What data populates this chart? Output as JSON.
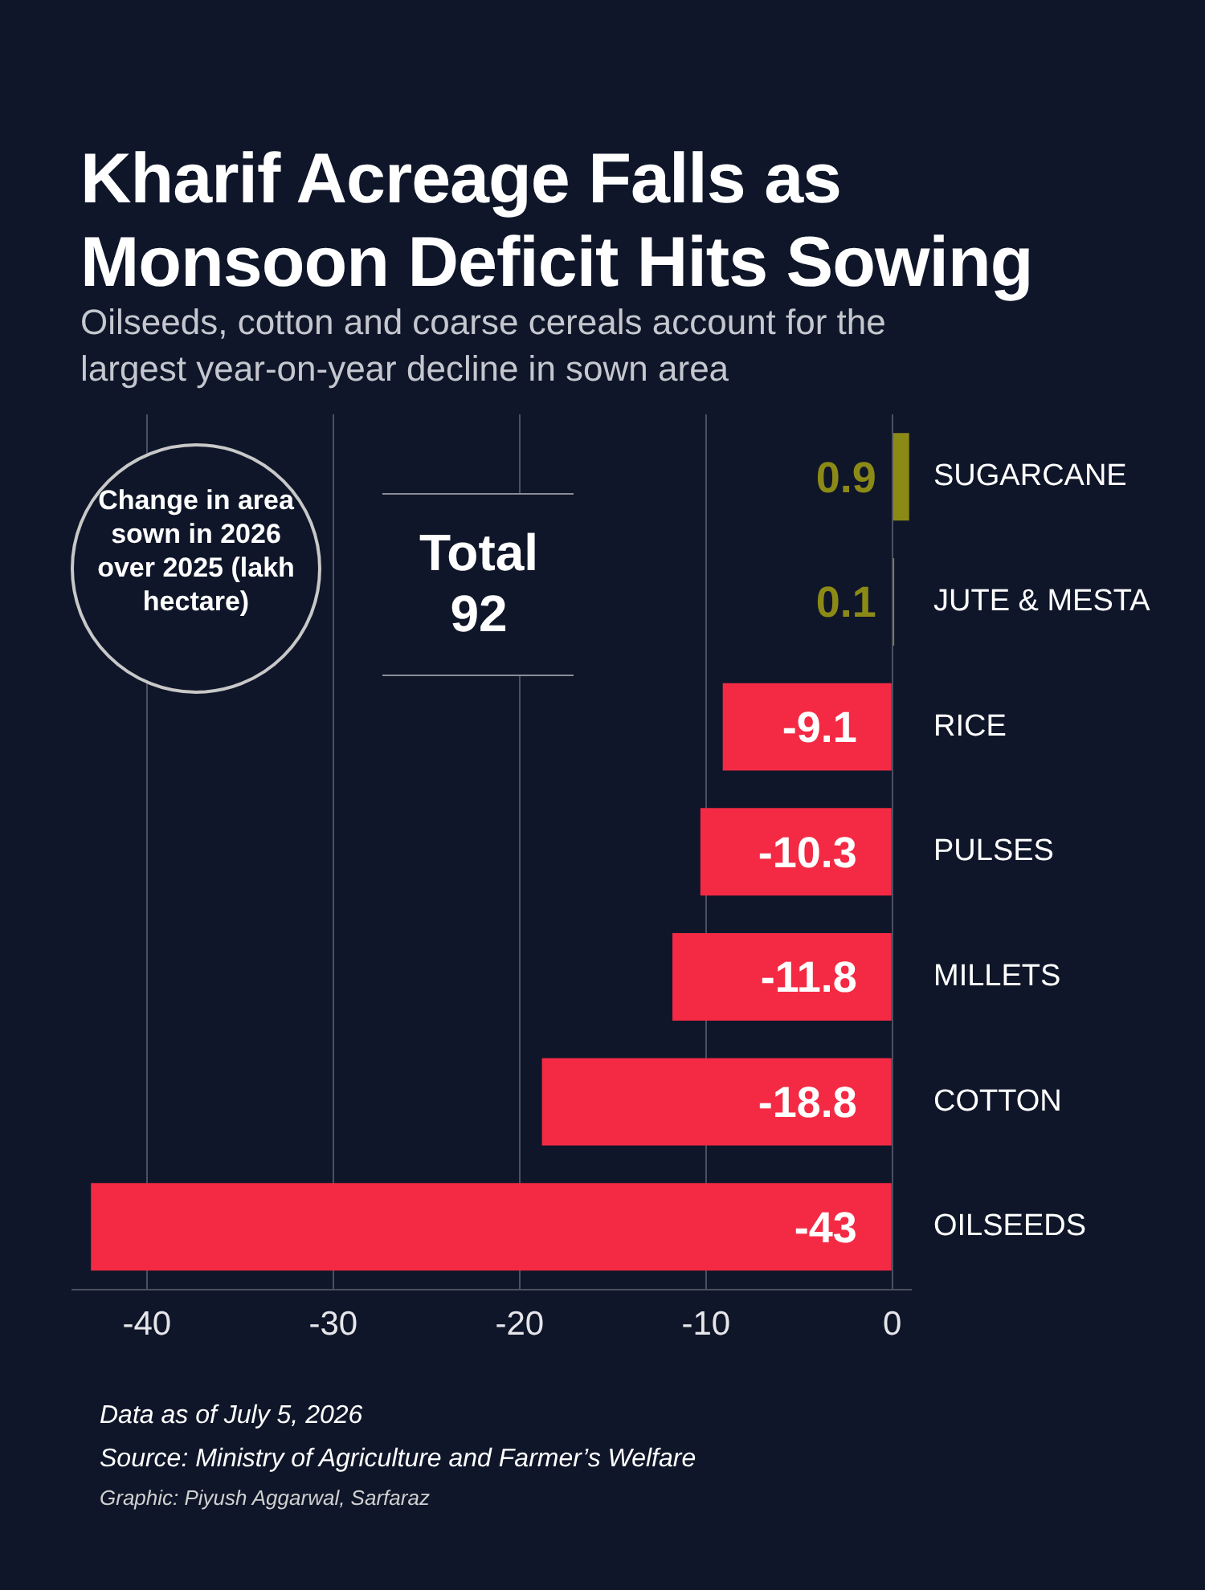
{
  "chart_data": {
    "type": "bar",
    "orientation": "horizontal",
    "title": "Kharif Acreage Falls as Monsoon Deficit Hits Sowing",
    "subtitle": "Oilseeds, cotton and coarse cereals account for the largest year-on-year decline in sown area",
    "categories": [
      "SUGARCANE",
      "JUTE & MESTA",
      "RICE",
      "PULSES",
      "MILLETS",
      "COTTON",
      "OILSEEDS"
    ],
    "values": [
      0.9,
      0.1,
      -9.1,
      -10.3,
      -11.8,
      -18.8,
      -43
    ],
    "colors": [
      "#8c8a17",
      "#8c8a17",
      "#f42a44",
      "#f42a44",
      "#f42a44",
      "#f42a44",
      "#f42a44"
    ],
    "xlim": [
      -44,
      1
    ],
    "xticks": [
      -40,
      -30,
      -20,
      -10,
      0
    ],
    "grid": "x",
    "data_labels": true,
    "annotations": [
      "Change in area sown in 2026 over 2025 (lakh hectare)",
      "Total 92",
      "Data as of July 5, 2026",
      "Source: Ministry of Agriculture and Farmer’s Welfare",
      "Graphic: Piyush Aggarwal, Sarfaraz"
    ]
  }
}
